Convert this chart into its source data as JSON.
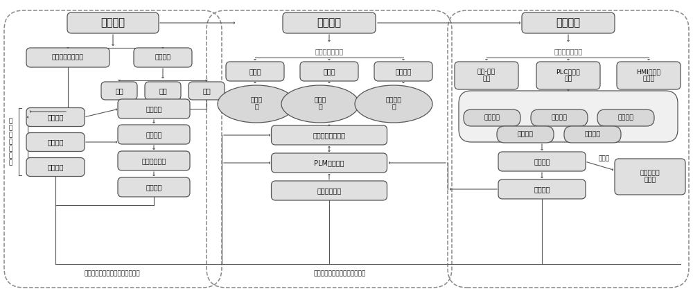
{
  "bg": "#ffffff",
  "bf": "#e0e0e0",
  "be": "#555555",
  "ac": "#555555",
  "dc": "#888888",
  "pill_fill": "#d8d8d8",
  "title_fill": "#d8d8d8",
  "fs": 7.5,
  "fst": 10.5,
  "fss": 6.5,
  "fsm": 7.0,
  "p1_title": "概念设计",
  "p2_title": "详细设计",
  "p3_title": "虚拟验证",
  "p1_box1": "物理空间数据整合",
  "p1_box2": "模块划分",
  "p1_func": "功能",
  "p1_mfg": "制造",
  "p1_svc": "服务",
  "p1_fnk": "功能知识",
  "p1_bek": "行为知识",
  "p1_stk": "结构知识",
  "p1_xq": "需求分析",
  "p1_gn": "功能设计",
  "p1_bw": "行为参数设计",
  "p1_jg": "结构设计",
  "p1_side": "多\n学\n科\n知\n识\n协\n同",
  "p1_bottom": "依据调试效果进行概念性设计变更",
  "p2_sub": "多学科协同建模",
  "p2_jx": "机械学",
  "p2_dq": "电气学",
  "p2_zdh": "自动化学",
  "p2_jxm": "机械模\n型",
  "p2_dqm": "电气模\n型",
  "p2_zdhm": "自动化模\n型",
  "p2_build": "构建数字孪生模型",
  "p2_plm": "PLM数据管理",
  "p2_soft": "软件集成平台",
  "p2_bottom": "依据调试效果进行具体设计优化",
  "p3_sub": "多学科协同仿真",
  "p3_yd": "运动-控制\n仿真",
  "p3_plc": "PLC控制器\n仿真",
  "p3_hmi": "HMI人机界\n面仿真",
  "p3_wg": "外观模拟",
  "p3_gn": "功能仿真",
  "p3_bw": "行为分析",
  "p3_xn": "性能分析",
  "p3_hj": "环境模拟",
  "p3_debug": "虚拟调试",
  "p3_effect": "调试效果",
  "p3_opt_label": "优化后",
  "p3_best": "最佳数字孪\n生模型"
}
